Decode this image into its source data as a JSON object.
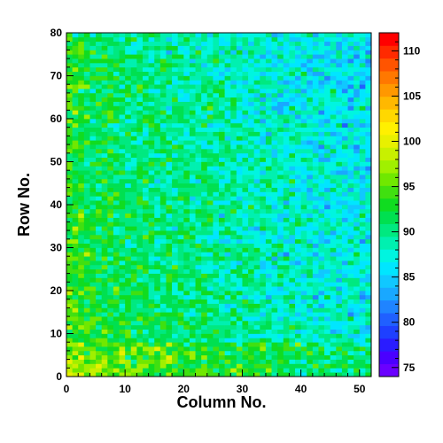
{
  "chart_data": {
    "type": "heatmap",
    "title": "",
    "xlabel": "Column No.",
    "ylabel": "Row No.",
    "x_range": [
      0,
      52
    ],
    "y_range": [
      0,
      80
    ],
    "x_ticks": [
      0,
      10,
      20,
      30,
      40,
      50
    ],
    "y_ticks": [
      0,
      10,
      20,
      30,
      40,
      50,
      60,
      70,
      80
    ],
    "columns": 52,
    "rows": 80,
    "z_range": [
      74,
      112
    ],
    "colorbar_ticks": [
      75,
      80,
      85,
      90,
      95,
      100,
      105,
      110
    ],
    "palette": [
      "#6a00ff",
      "#4a00ff",
      "#2a1cff",
      "#1e40ff",
      "#2060ff",
      "#1f84ff",
      "#19a8ff",
      "#10c8ff",
      "#00e6ff",
      "#00f5e0",
      "#00f0b0",
      "#00e980",
      "#00e050",
      "#10dc20",
      "#40e010",
      "#70e800",
      "#a0f000",
      "#c8f000",
      "#e8f000",
      "#fff000",
      "#ffd800",
      "#ffb800",
      "#ff9800",
      "#ff7800",
      "#ff5400",
      "#ff2a00",
      "#ff0000"
    ],
    "values_description_source": "per-bin z values (approximately 85–95 on average, decreasing toward higher column numbers)",
    "grid": false,
    "legend": "colorbar right"
  }
}
